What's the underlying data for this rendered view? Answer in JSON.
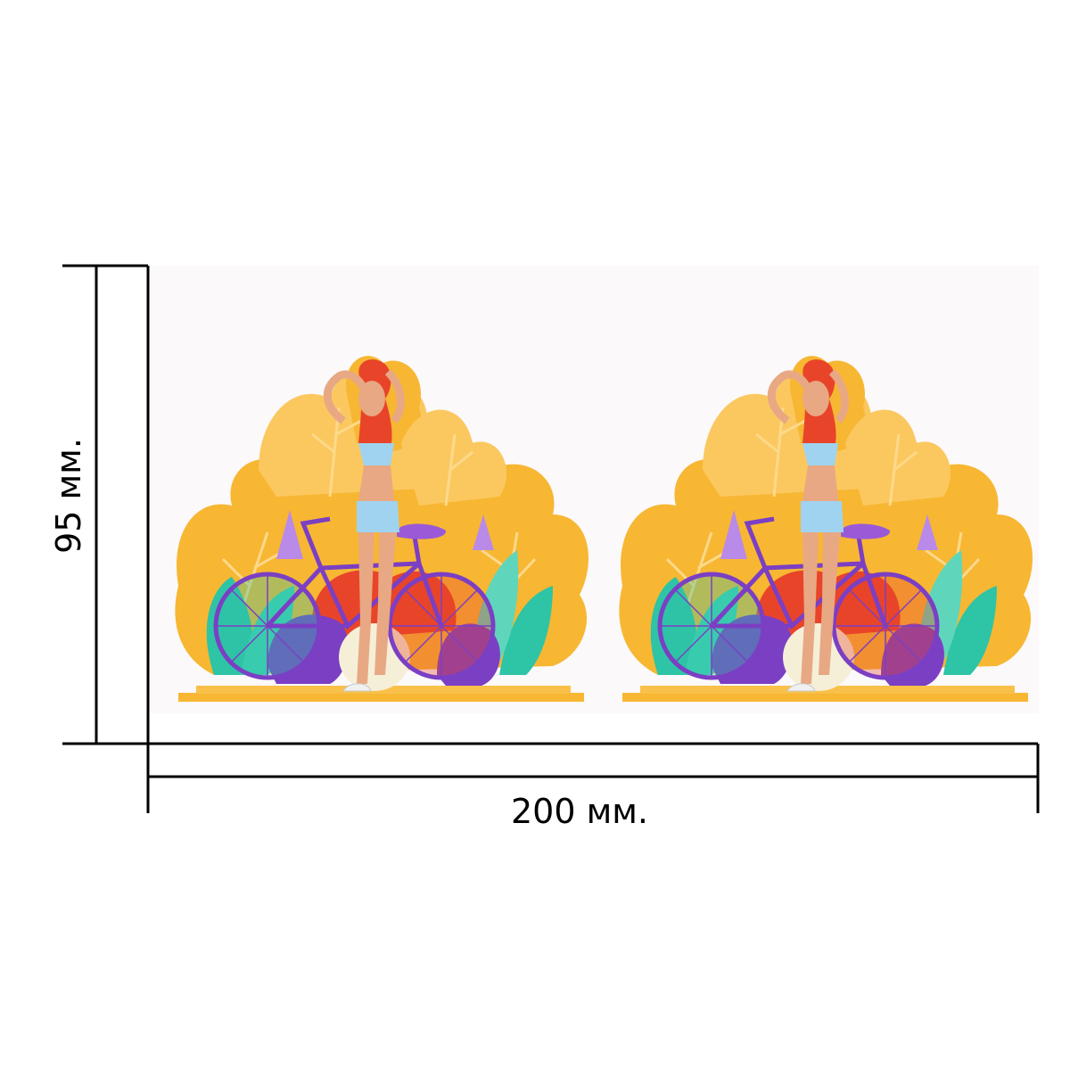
{
  "dimensions": {
    "width_label": "200 мм.",
    "height_label": "95 мм."
  },
  "artwork": {
    "motif_icon": "woman-with-bicycle-illustration",
    "motif_count": 2,
    "colors": {
      "panel": "#fbf9fa",
      "leaf_orange": "#f7b733",
      "leaf_light": "#fbc860",
      "teal": "#2ec4a6",
      "purple": "#7b3fc4",
      "lilac": "#b98ae8",
      "red": "#e8442a",
      "skin": "#e8a884",
      "top_blue": "#9fd3f0",
      "cream": "#f5efd8"
    }
  }
}
